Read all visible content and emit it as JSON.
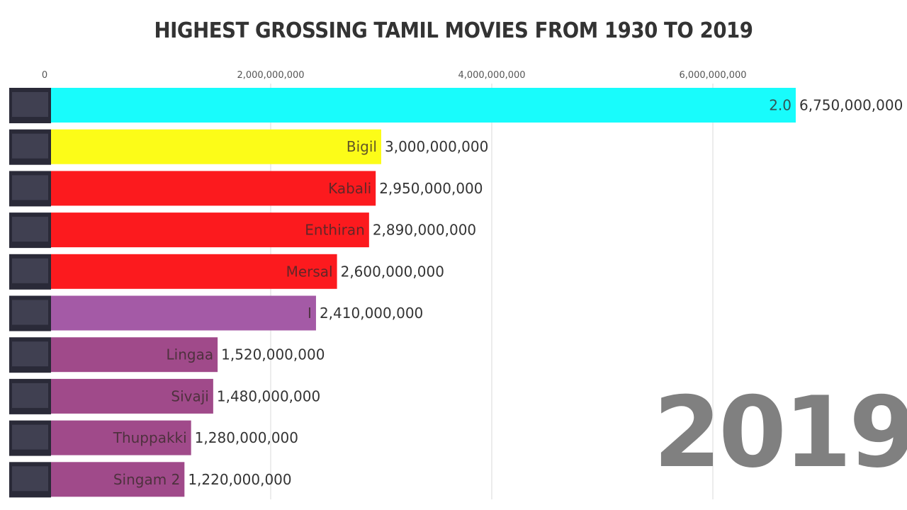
{
  "chart_data": {
    "type": "bar",
    "orientation": "horizontal",
    "title": "HIGHEST GROSSING TAMIL MOVIES FROM 1930 TO 2019",
    "year_label": "2019",
    "xlabel": "",
    "ylabel": "",
    "xlim": [
      0,
      7000000000
    ],
    "grid": true,
    "x_ticks": [
      {
        "value": 0,
        "label": "0"
      },
      {
        "value": 2000000000,
        "label": "2,000,000,000"
      },
      {
        "value": 4000000000,
        "label": "4,000,000,000"
      },
      {
        "value": 6000000000,
        "label": "6,000,000,000"
      }
    ],
    "categories": [
      "2.0",
      "Bigil",
      "Kabali",
      "Enthiran",
      "Mersal",
      "I",
      "Lingaa",
      "Sivaji",
      "Thuppakki",
      "Singam 2"
    ],
    "bars": [
      {
        "name": "2.0",
        "value": 6750000000,
        "label": "6,750,000,000",
        "color": "#18fcfc",
        "poster": "2.0-poster"
      },
      {
        "name": "Bigil",
        "value": 3000000000,
        "label": "3,000,000,000",
        "color": "#fcfc18",
        "poster": "bigil-poster"
      },
      {
        "name": "Kabali",
        "value": 2950000000,
        "label": "2,950,000,000",
        "color": "#fc1a1e",
        "poster": "kabali-poster"
      },
      {
        "name": "Enthiran",
        "value": 2890000000,
        "label": "2,890,000,000",
        "color": "#fc1a1e",
        "poster": "enthiran-poster"
      },
      {
        "name": "Mersal",
        "value": 2600000000,
        "label": "2,600,000,000",
        "color": "#fc1a1e",
        "poster": "mersal-poster"
      },
      {
        "name": "I",
        "value": 2410000000,
        "label": "2,410,000,000",
        "color": "#a45aa6",
        "poster": "i-poster"
      },
      {
        "name": "Lingaa",
        "value": 1520000000,
        "label": "1,520,000,000",
        "color": "#a04a8a",
        "poster": "lingaa-poster"
      },
      {
        "name": "Sivaji",
        "value": 1480000000,
        "label": "1,480,000,000",
        "color": "#a04a8a",
        "poster": "sivaji-poster"
      },
      {
        "name": "Thuppakki",
        "value": 1280000000,
        "label": "1,280,000,000",
        "color": "#a04a8a",
        "poster": "thuppakki-poster"
      },
      {
        "name": "Singam 2",
        "value": 1220000000,
        "label": "1,220,000,000",
        "color": "#a04a8a",
        "poster": "singam-2-poster"
      }
    ]
  }
}
